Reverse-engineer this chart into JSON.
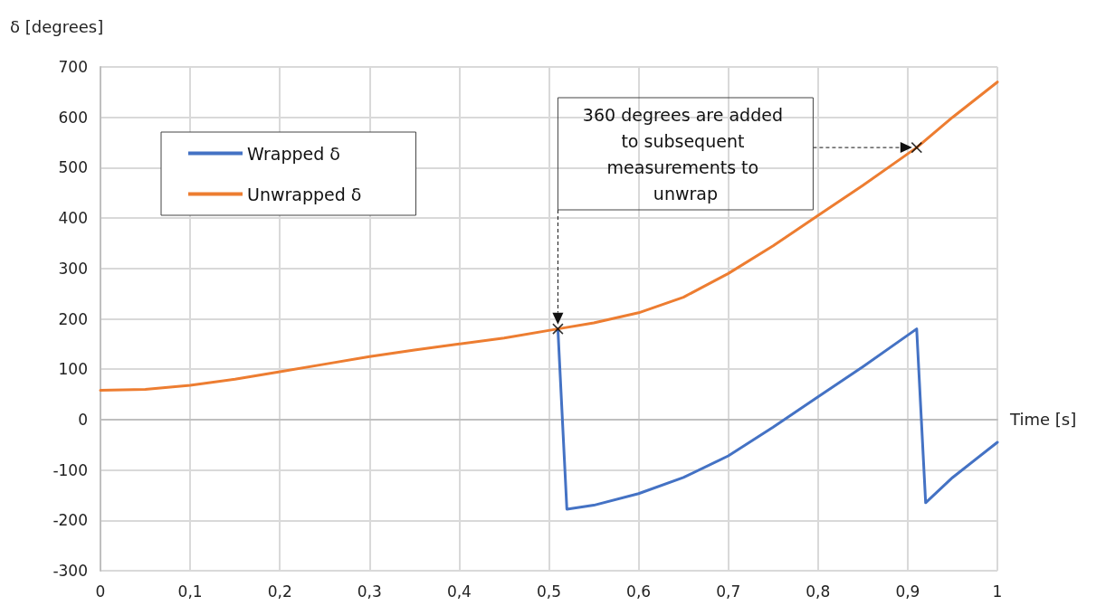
{
  "chart_data": {
    "type": "line",
    "xlabel": "Time [s]",
    "ylabel": "δ [degrees]",
    "xlim": [
      0,
      1
    ],
    "xticks": [
      0,
      {
        "value": 0.1,
        "label": "0,1"
      },
      {
        "value": 0.2,
        "label": "0,2"
      },
      {
        "value": 0.3,
        "label": "0,3"
      },
      {
        "value": 0.4,
        "label": "0,4"
      },
      {
        "value": 0.5,
        "label": "0,5"
      },
      {
        "value": 0.6,
        "label": "0,6"
      },
      {
        "value": 0.7,
        "label": "0,7"
      },
      {
        "value": 0.8,
        "label": "0,8"
      },
      {
        "value": 0.9,
        "label": "0,9"
      },
      1
    ],
    "ylim": [
      -300,
      700
    ],
    "yticks": [
      -300,
      -200,
      -100,
      0,
      100,
      200,
      300,
      400,
      500,
      600,
      700
    ],
    "grid": true,
    "legend": "top left",
    "marker": "none",
    "line_style": "solid",
    "annotations": [
      "360 degrees are added to subsequent measurements to unwrap"
    ],
    "series": [
      {
        "name": "Wrapped δ",
        "color": "#4472c4",
        "x": [
          0.51,
          0.52,
          0.55,
          0.6,
          0.65,
          0.7,
          0.75,
          0.8,
          0.85,
          0.91,
          0.92,
          0.95,
          1
        ],
        "values": [
          180,
          -178,
          -170,
          -147,
          -115,
          -72,
          -15,
          45,
          105,
          180,
          -165,
          -115,
          -45
        ]
      },
      {
        "name": "Unwrapped δ",
        "color": "#ed7d31",
        "x": [
          0,
          0.05,
          0.1,
          0.15,
          0.2,
          0.25,
          0.3,
          0.35,
          0.4,
          0.45,
          0.51,
          0.55,
          0.6,
          0.65,
          0.7,
          0.75,
          0.8,
          0.85,
          0.91,
          0.95,
          1
        ],
        "values": [
          58,
          60,
          68,
          80,
          95,
          110,
          125,
          138,
          150,
          162,
          180,
          192,
          212,
          243,
          290,
          345,
          405,
          465,
          540,
          600,
          670
        ]
      },
      {
        "type": "scatter",
        "marker": "cross",
        "color": "#000000",
        "x": [
          0.51,
          0.91
        ],
        "values": [
          180,
          540
        ]
      }
    ]
  }
}
